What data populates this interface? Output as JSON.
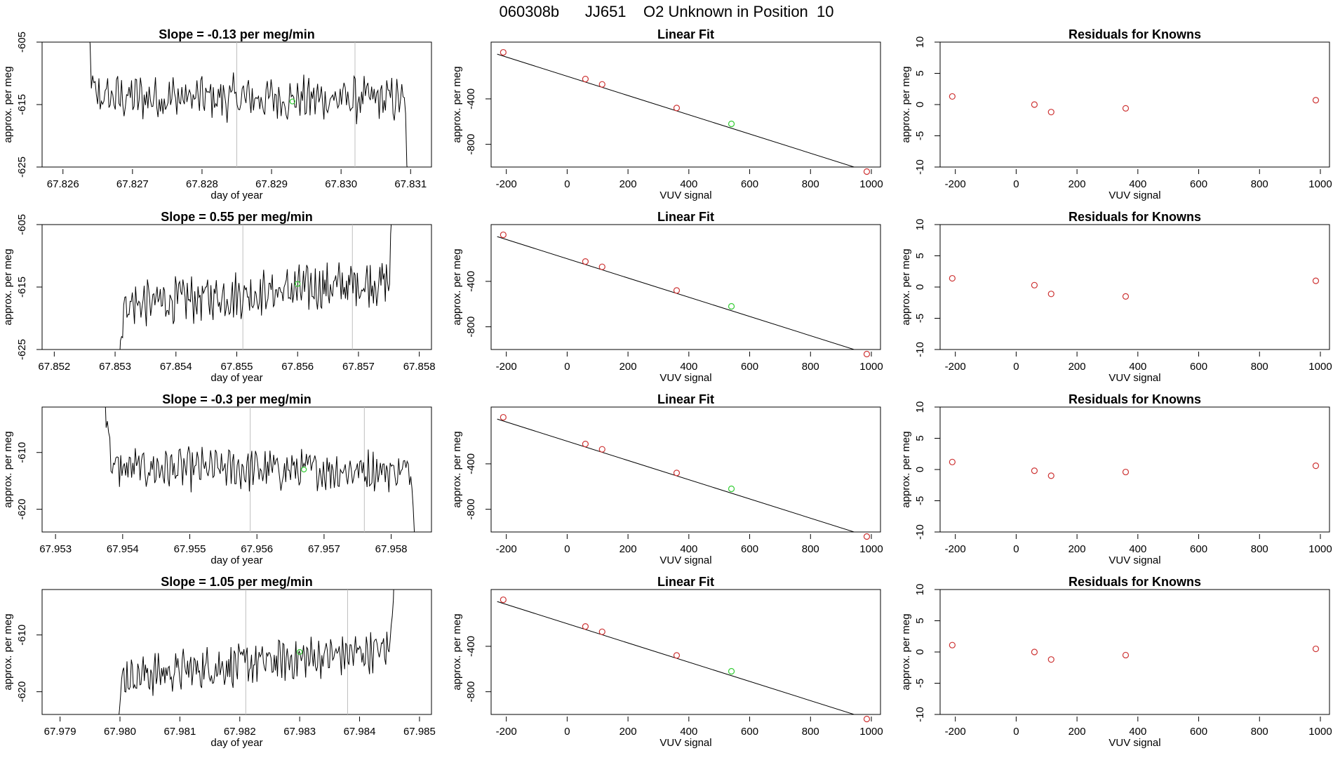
{
  "figure": {
    "title": "060308b      JJ651    O2 Unknown in Position  10"
  },
  "colors": {
    "line": "#000000",
    "known_point": "#cd3333",
    "unknown_point": "#33cc33",
    "marker_line": "#bebebe"
  },
  "chart_data": [
    {
      "panel": "timeseries",
      "row": 0,
      "type": "line",
      "title": "Slope =  -0.13  per meg/min",
      "xlabel": "day of year",
      "ylabel": "approx. per meg",
      "xlim": [
        67.8257,
        67.8313
      ],
      "ylim": [
        -625,
        -605
      ],
      "xticks": [
        "67.826",
        "67.827",
        "67.828",
        "67.829",
        "67.830",
        "67.831"
      ],
      "yticks": [
        "-605",
        "-615",
        "-625"
      ],
      "markers": [
        67.8285,
        67.8302
      ],
      "unknown_point": {
        "x": 67.8293,
        "y": -614.5
      },
      "start": 67.8263,
      "end": 67.831,
      "mean": -614,
      "amp": 3,
      "trend": -0.5
    },
    {
      "panel": "fit",
      "row": 0,
      "type": "scatter",
      "title": "Linear Fit",
      "xlabel": "VUV signal",
      "ylabel": "approx. per meg",
      "xlim": [
        -250,
        1030
      ],
      "ylim": [
        -1000,
        100
      ],
      "xticks": [
        "-200",
        "0",
        "200",
        "400",
        "600",
        "800",
        "1000"
      ],
      "yticks": [
        "-400",
        "-800"
      ],
      "knowns": {
        "x": [
          -210,
          60,
          115,
          360,
          985
        ],
        "y": [
          10,
          -225,
          -272,
          -480,
          -1040
        ]
      },
      "unknown": {
        "x": 540,
        "y": -620
      },
      "fit_line": {
        "x": [
          -230,
          1000
        ],
        "y": [
          -6,
          -1048
        ]
      }
    },
    {
      "panel": "residuals",
      "row": 0,
      "type": "scatter",
      "title": "Residuals for Knowns",
      "xlabel": "VUV signal",
      "ylabel": "approx. per meg",
      "xlim": [
        -250,
        1030
      ],
      "ylim": [
        -10,
        10
      ],
      "xticks": [
        "-200",
        "0",
        "200",
        "400",
        "600",
        "800",
        "1000"
      ],
      "yticks": [
        "10",
        "5",
        "0",
        "-5",
        "-10"
      ],
      "x": [
        -210,
        60,
        115,
        360,
        985
      ],
      "y": [
        1.3,
        0.0,
        -1.2,
        -0.6,
        0.7
      ]
    },
    {
      "panel": "timeseries",
      "row": 1,
      "type": "line",
      "title": "Slope =  0.55  per meg/min",
      "xlabel": "day of year",
      "ylabel": "approx. per meg",
      "xlim": [
        67.8518,
        67.8582
      ],
      "ylim": [
        -625,
        -605
      ],
      "xticks": [
        "67.852",
        "67.853",
        "67.854",
        "67.855",
        "67.856",
        "67.857",
        "67.858"
      ],
      "yticks": [
        "-605",
        "-615",
        "-625"
      ],
      "markers": [
        67.8551,
        67.8569
      ],
      "unknown_point": {
        "x": 67.856,
        "y": -614.5
      },
      "start": 67.853,
      "end": 67.8576,
      "mean": -616,
      "amp": 3,
      "trend": 4
    },
    {
      "panel": "fit",
      "row": 1,
      "type": "scatter",
      "title": "Linear Fit",
      "xlabel": "VUV signal",
      "ylabel": "approx. per meg",
      "xlim": [
        -250,
        1030
      ],
      "ylim": [
        -1000,
        100
      ],
      "xticks": [
        "-200",
        "0",
        "200",
        "400",
        "600",
        "800",
        "1000"
      ],
      "yticks": [
        "-400",
        "-800"
      ],
      "knowns": {
        "x": [
          -210,
          60,
          115,
          360,
          985
        ],
        "y": [
          10,
          -225,
          -272,
          -480,
          -1040
        ]
      },
      "unknown": {
        "x": 540,
        "y": -620
      },
      "fit_line": {
        "x": [
          -230,
          1000
        ],
        "y": [
          -6,
          -1048
        ]
      }
    },
    {
      "panel": "residuals",
      "row": 1,
      "type": "scatter",
      "title": "Residuals for Knowns",
      "xlabel": "VUV signal",
      "ylabel": "approx. per meg",
      "xlim": [
        -250,
        1030
      ],
      "ylim": [
        -10,
        10
      ],
      "xticks": [
        "-200",
        "0",
        "200",
        "400",
        "600",
        "800",
        "1000"
      ],
      "yticks": [
        "10",
        "5",
        "0",
        "-5",
        "-10"
      ],
      "x": [
        -210,
        60,
        115,
        360,
        985
      ],
      "y": [
        1.4,
        0.3,
        -1.1,
        -1.5,
        1.0
      ]
    },
    {
      "panel": "timeseries",
      "row": 2,
      "type": "line",
      "title": "Slope =  -0.3  per meg/min",
      "xlabel": "day of year",
      "ylabel": "approx. per meg",
      "xlim": [
        67.9528,
        67.9586
      ],
      "ylim": [
        -624,
        -602
      ],
      "xticks": [
        "67.953",
        "67.954",
        "67.955",
        "67.956",
        "67.957",
        "67.958"
      ],
      "yticks": [
        "-610",
        "-620"
      ],
      "markers": [
        67.9559,
        67.9576
      ],
      "unknown_point": {
        "x": 67.9567,
        "y": -613
      },
      "start": 67.9537,
      "end": 67.9584,
      "mean": -613,
      "amp": 3,
      "trend": -0.5
    },
    {
      "panel": "fit",
      "row": 2,
      "type": "scatter",
      "title": "Linear Fit",
      "xlabel": "VUV signal",
      "ylabel": "approx. per meg",
      "xlim": [
        -250,
        1030
      ],
      "ylim": [
        -1000,
        100
      ],
      "xticks": [
        "-200",
        "0",
        "200",
        "400",
        "600",
        "800",
        "1000"
      ],
      "yticks": [
        "-400",
        "-800"
      ],
      "knowns": {
        "x": [
          -210,
          60,
          115,
          360,
          985
        ],
        "y": [
          10,
          -225,
          -272,
          -480,
          -1040
        ]
      },
      "unknown": {
        "x": 540,
        "y": -620
      },
      "fit_line": {
        "x": [
          -230,
          1000
        ],
        "y": [
          -6,
          -1048
        ]
      }
    },
    {
      "panel": "residuals",
      "row": 2,
      "type": "scatter",
      "title": "Residuals for Knowns",
      "xlabel": "VUV signal",
      "ylabel": "approx. per meg",
      "xlim": [
        -250,
        1030
      ],
      "ylim": [
        -10,
        10
      ],
      "xticks": [
        "-200",
        "0",
        "200",
        "400",
        "600",
        "800",
        "1000"
      ],
      "yticks": [
        "10",
        "5",
        "0",
        "-5",
        "-10"
      ],
      "x": [
        -210,
        60,
        115,
        360,
        985
      ],
      "y": [
        1.2,
        -0.2,
        -1.0,
        -0.4,
        0.6
      ]
    },
    {
      "panel": "timeseries",
      "row": 3,
      "type": "line",
      "title": "Slope =  1.05  per meg/min",
      "xlabel": "day of year",
      "ylabel": "approx. per meg",
      "xlim": [
        67.9787,
        67.9852
      ],
      "ylim": [
        -624,
        -602
      ],
      "xticks": [
        "67.979",
        "67.980",
        "67.981",
        "67.982",
        "67.983",
        "67.984",
        "67.985"
      ],
      "yticks": [
        "-610",
        "-620"
      ],
      "markers": [
        67.9821,
        67.9838
      ],
      "unknown_point": {
        "x": 67.983,
        "y": -613
      },
      "start": 67.9799,
      "end": 67.9846,
      "mean": -615,
      "amp": 3,
      "trend": 5
    },
    {
      "panel": "fit",
      "row": 3,
      "type": "scatter",
      "title": "Linear Fit",
      "xlabel": "VUV signal",
      "ylabel": "approx. per meg",
      "xlim": [
        -250,
        1030
      ],
      "ylim": [
        -1000,
        100
      ],
      "xticks": [
        "-200",
        "0",
        "200",
        "400",
        "600",
        "800",
        "1000"
      ],
      "yticks": [
        "-400",
        "-800"
      ],
      "knowns": {
        "x": [
          -210,
          60,
          115,
          360,
          985
        ],
        "y": [
          10,
          -225,
          -272,
          -480,
          -1040
        ]
      },
      "unknown": {
        "x": 540,
        "y": -620
      },
      "fit_line": {
        "x": [
          -230,
          1000
        ],
        "y": [
          -6,
          -1048
        ]
      }
    },
    {
      "panel": "residuals",
      "row": 3,
      "type": "scatter",
      "title": "Residuals for Knowns",
      "xlabel": "VUV signal",
      "ylabel": "approx. per meg",
      "xlim": [
        -250,
        1030
      ],
      "ylim": [
        -10,
        10
      ],
      "xticks": [
        "-200",
        "0",
        "200",
        "400",
        "600",
        "800",
        "1000"
      ],
      "yticks": [
        "10",
        "5",
        "0",
        "-5",
        "-10"
      ],
      "x": [
        -210,
        60,
        115,
        360,
        985
      ],
      "y": [
        1.1,
        0.0,
        -1.2,
        -0.5,
        0.5
      ]
    }
  ]
}
